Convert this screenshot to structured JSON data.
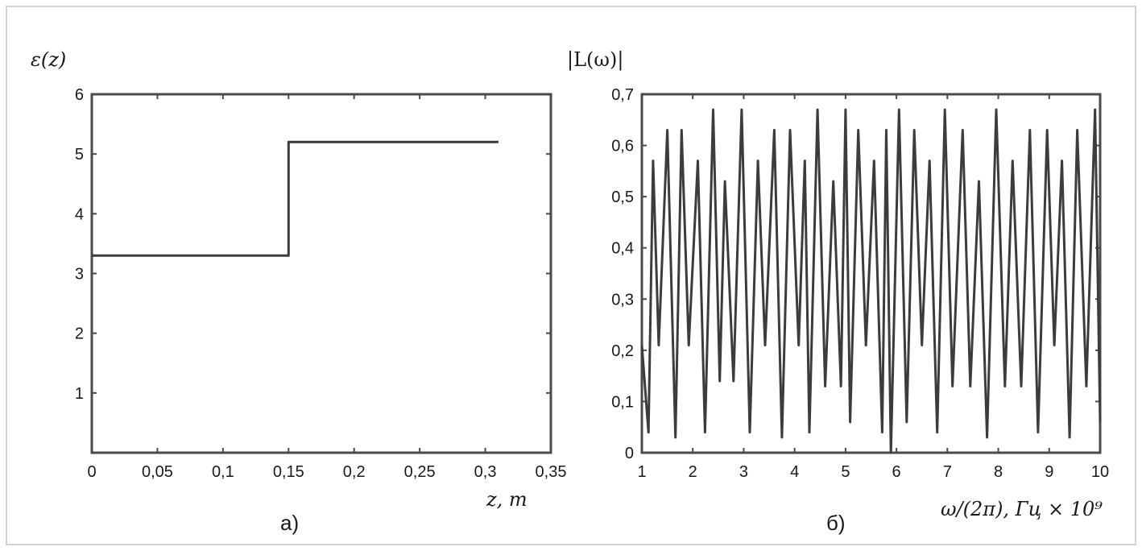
{
  "chart_data": [
    {
      "type": "line",
      "panel_label": "а)",
      "ylabel": "ε(z)",
      "xlabel": "z, m",
      "xlim": [
        0,
        0.35
      ],
      "ylim": [
        0,
        6
      ],
      "x_ticks": [
        0,
        0.05,
        0.1,
        0.15,
        0.2,
        0.25,
        0.3,
        0.35
      ],
      "x_tick_labels": [
        "0",
        "0,05",
        "0,1",
        "0,15",
        "0,2",
        "0,25",
        "0,3",
        "0,35"
      ],
      "y_ticks": [
        1,
        2,
        3,
        4,
        5,
        6
      ],
      "y_tick_labels": [
        "1",
        "2",
        "3",
        "4",
        "5",
        "6"
      ],
      "grid": false,
      "series": [
        {
          "x": [
            0,
            0.15,
            0.15,
            0.31
          ],
          "y": [
            3.3,
            3.3,
            5.2,
            5.2
          ]
        }
      ]
    },
    {
      "type": "line",
      "panel_label": "б)",
      "ylabel": "|L(ω)|",
      "xlabel": "ω/(2π), Гц × 10⁹",
      "xlim": [
        1,
        10
      ],
      "ylim": [
        0,
        0.7
      ],
      "x_ticks": [
        1,
        2,
        3,
        4,
        5,
        6,
        7,
        8,
        9,
        10
      ],
      "x_tick_labels": [
        "1",
        "2",
        "3",
        "4",
        "5",
        "6",
        "7",
        "8",
        "9",
        "10"
      ],
      "y_ticks": [
        0,
        0.1,
        0.2,
        0.3,
        0.4,
        0.5,
        0.6,
        0.7
      ],
      "y_tick_labels": [
        "0",
        "0,1",
        "0,2",
        "0,3",
        "0,4",
        "0,5",
        "0,6",
        "0,7"
      ],
      "grid": false,
      "series": [
        {
          "x": [
            1.0,
            1.13,
            1.22,
            1.33,
            1.5,
            1.66,
            1.78,
            1.92,
            2.1,
            2.24,
            2.4,
            2.53,
            2.63,
            2.8,
            2.96,
            3.12,
            3.28,
            3.42,
            3.6,
            3.75,
            3.91,
            4.08,
            4.2,
            4.29,
            4.45,
            4.6,
            4.76,
            4.91,
            5.0,
            5.09,
            5.25,
            5.4,
            5.56,
            5.72,
            5.8,
            5.89,
            6.05,
            6.2,
            6.35,
            6.5,
            6.65,
            6.8,
            6.95,
            7.1,
            7.3,
            7.45,
            7.62,
            7.78,
            7.96,
            8.13,
            8.28,
            8.45,
            8.62,
            8.78,
            8.96,
            9.1,
            9.25,
            9.4,
            9.55,
            9.73,
            9.9,
            10.0
          ],
          "y": [
            0.21,
            0.04,
            0.57,
            0.21,
            0.63,
            0.03,
            0.63,
            0.21,
            0.57,
            0.04,
            0.67,
            0.14,
            0.53,
            0.14,
            0.67,
            0.04,
            0.57,
            0.21,
            0.63,
            0.03,
            0.63,
            0.21,
            0.57,
            0.04,
            0.67,
            0.13,
            0.53,
            0.13,
            0.67,
            0.06,
            0.63,
            0.21,
            0.57,
            0.04,
            0.63,
            0.0,
            0.67,
            0.06,
            0.63,
            0.21,
            0.57,
            0.04,
            0.67,
            0.13,
            0.63,
            0.13,
            0.53,
            0.03,
            0.67,
            0.13,
            0.57,
            0.13,
            0.63,
            0.04,
            0.63,
            0.21,
            0.57,
            0.03,
            0.63,
            0.13,
            0.67,
            0.06
          ]
        }
      ]
    }
  ]
}
